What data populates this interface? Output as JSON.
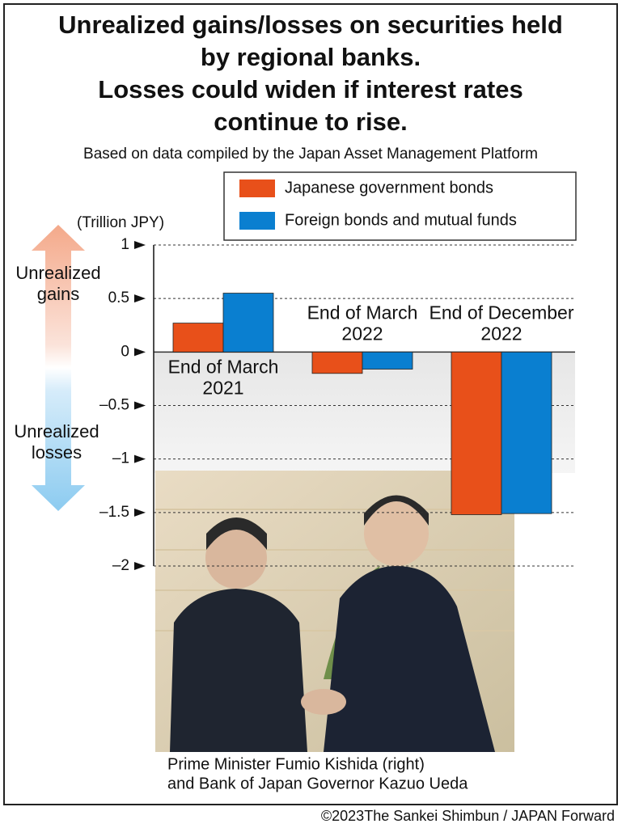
{
  "chart_data": {
    "type": "bar",
    "title": [
      "Unrealized gains/losses on securities held",
      "by regional banks.",
      "Losses could widen if interest rates",
      "continue to rise."
    ],
    "subtitle": "Based on data compiled by the Japan Asset Management Platform",
    "y_label": "(Trillion JPY)",
    "annotations": [
      "Unrealized gains",
      "Unrealized losses"
    ],
    "caption": [
      "Prime Minister Fumio Kishida (right)",
      "and Bank of Japan Governor Kazuo Ueda"
    ],
    "source": "©2023The Sankei Shimbun / JAPAN Forward",
    "categories": [
      "End of March 2021",
      "End of March 2022",
      "End of December 2022"
    ],
    "series": [
      {
        "name": "Japanese government bonds",
        "color": "#e8501a",
        "values": [
          0.27,
          -0.2,
          -1.52
        ]
      },
      {
        "name": "Foreign bonds and mutual funds",
        "color": "#0a7fd0",
        "values": [
          0.55,
          -0.16,
          -1.51
        ]
      }
    ],
    "ylim": [
      -2,
      1
    ],
    "yticks": [
      1,
      0.5,
      0,
      {
        "value": -0.5,
        "label": "–0.5"
      },
      {
        "value": -1,
        "label": "–1"
      },
      {
        "value": -1.5,
        "label": "–1.5"
      },
      {
        "value": -2,
        "label": "–2"
      }
    ],
    "grid": true,
    "legend": "top-right"
  }
}
